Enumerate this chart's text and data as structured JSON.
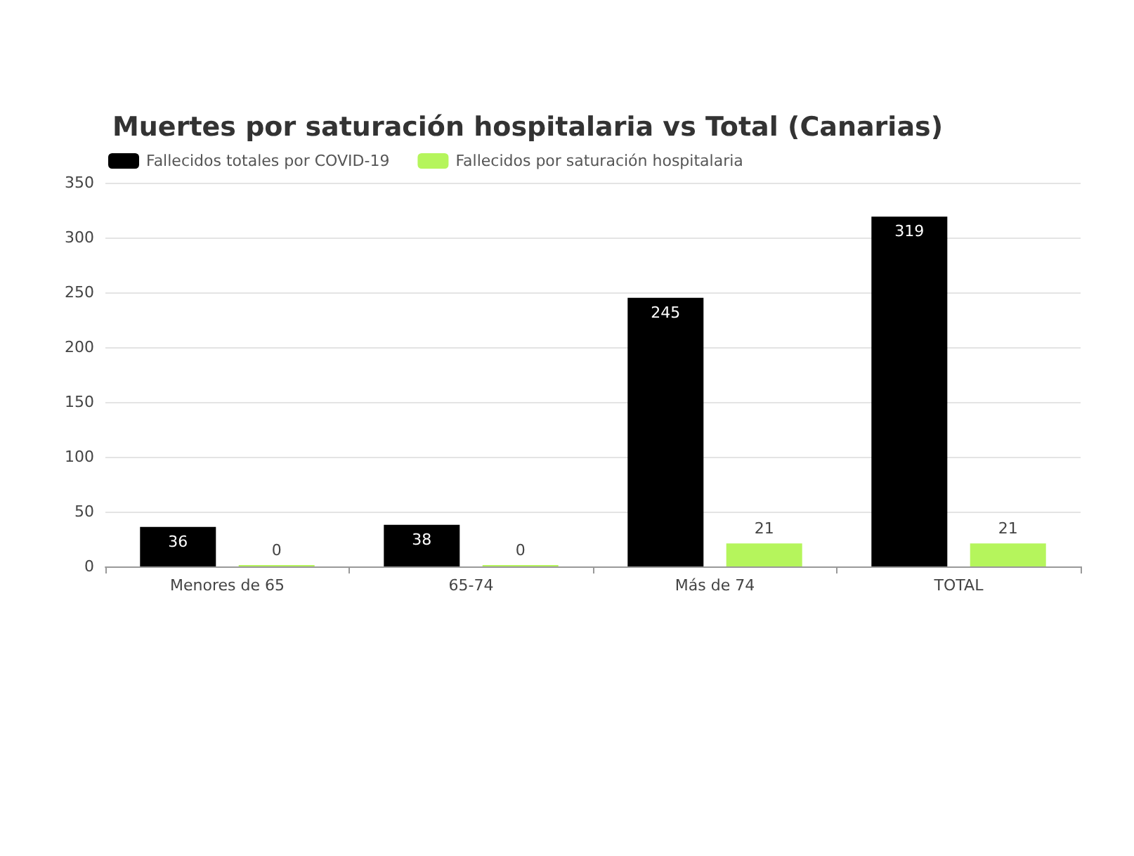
{
  "chart_data": {
    "type": "bar",
    "title": "Muertes por saturación hospitalaria vs Total (Canarias)",
    "categories": [
      "Menores de 65",
      "65-74",
      "Más de 74",
      "TOTAL"
    ],
    "series": [
      {
        "name": "Fallecidos totales por COVID-19",
        "color": "#000000",
        "values": [
          36,
          38,
          245,
          319
        ]
      },
      {
        "name": "Fallecidos por saturación hospitalaria",
        "color": "#b5f55c",
        "values": [
          0,
          0,
          21,
          21
        ]
      }
    ],
    "ylim": [
      0,
      350
    ],
    "yticks": [
      0,
      50,
      100,
      150,
      200,
      250,
      300,
      350
    ],
    "grid": "y",
    "legend": "top left",
    "data_labels": true
  }
}
